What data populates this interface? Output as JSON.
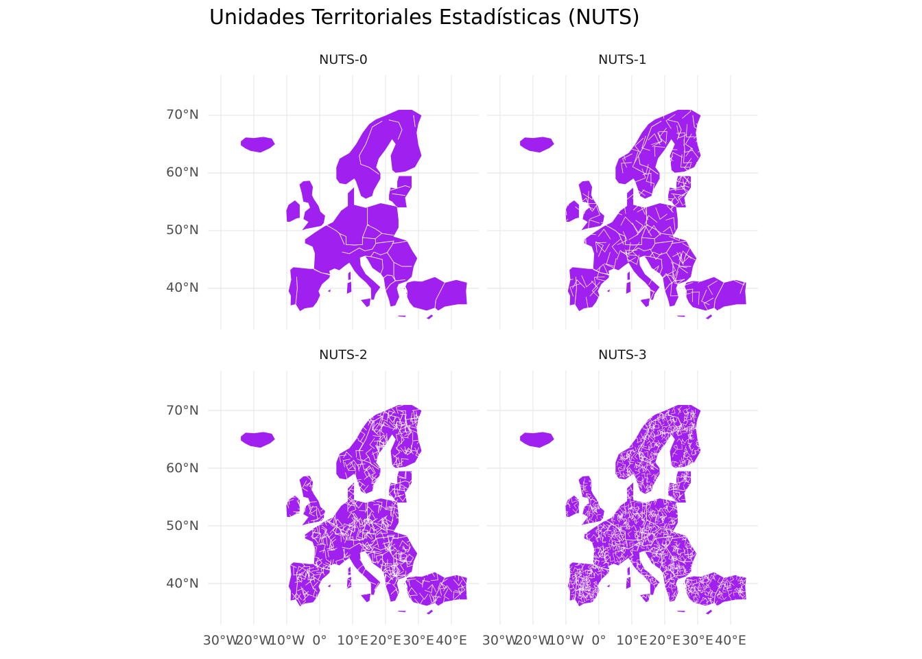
{
  "title": "Unidades Territoriales Estadísticas (NUTS)",
  "colors": {
    "fill": "#a020f0",
    "border": "#ffffff",
    "grid": "#ebebeb",
    "tick": "#4d4d4d"
  },
  "axes": {
    "lon_range": [
      -32,
      46
    ],
    "lat_range": [
      33,
      77
    ],
    "x_ticks": [
      {
        "value": -30,
        "label": "30°W"
      },
      {
        "value": -20,
        "label": "20°W"
      },
      {
        "value": -10,
        "label": "10°W"
      },
      {
        "value": 0,
        "label": "0°"
      },
      {
        "value": 10,
        "label": "10°E"
      },
      {
        "value": 20,
        "label": "20°E"
      },
      {
        "value": 30,
        "label": "30°E"
      },
      {
        "value": 40,
        "label": "40°E"
      }
    ],
    "y_ticks": [
      {
        "value": 40,
        "label": "40°N"
      },
      {
        "value": 50,
        "label": "50°N"
      },
      {
        "value": 60,
        "label": "60°N"
      },
      {
        "value": 70,
        "label": "70°N"
      }
    ]
  },
  "panels": [
    {
      "label": "NUTS-0",
      "level": 0
    },
    {
      "label": "NUTS-1",
      "level": 1
    },
    {
      "label": "NUTS-2",
      "level": 2
    },
    {
      "label": "NUTS-3",
      "level": 3
    }
  ]
}
